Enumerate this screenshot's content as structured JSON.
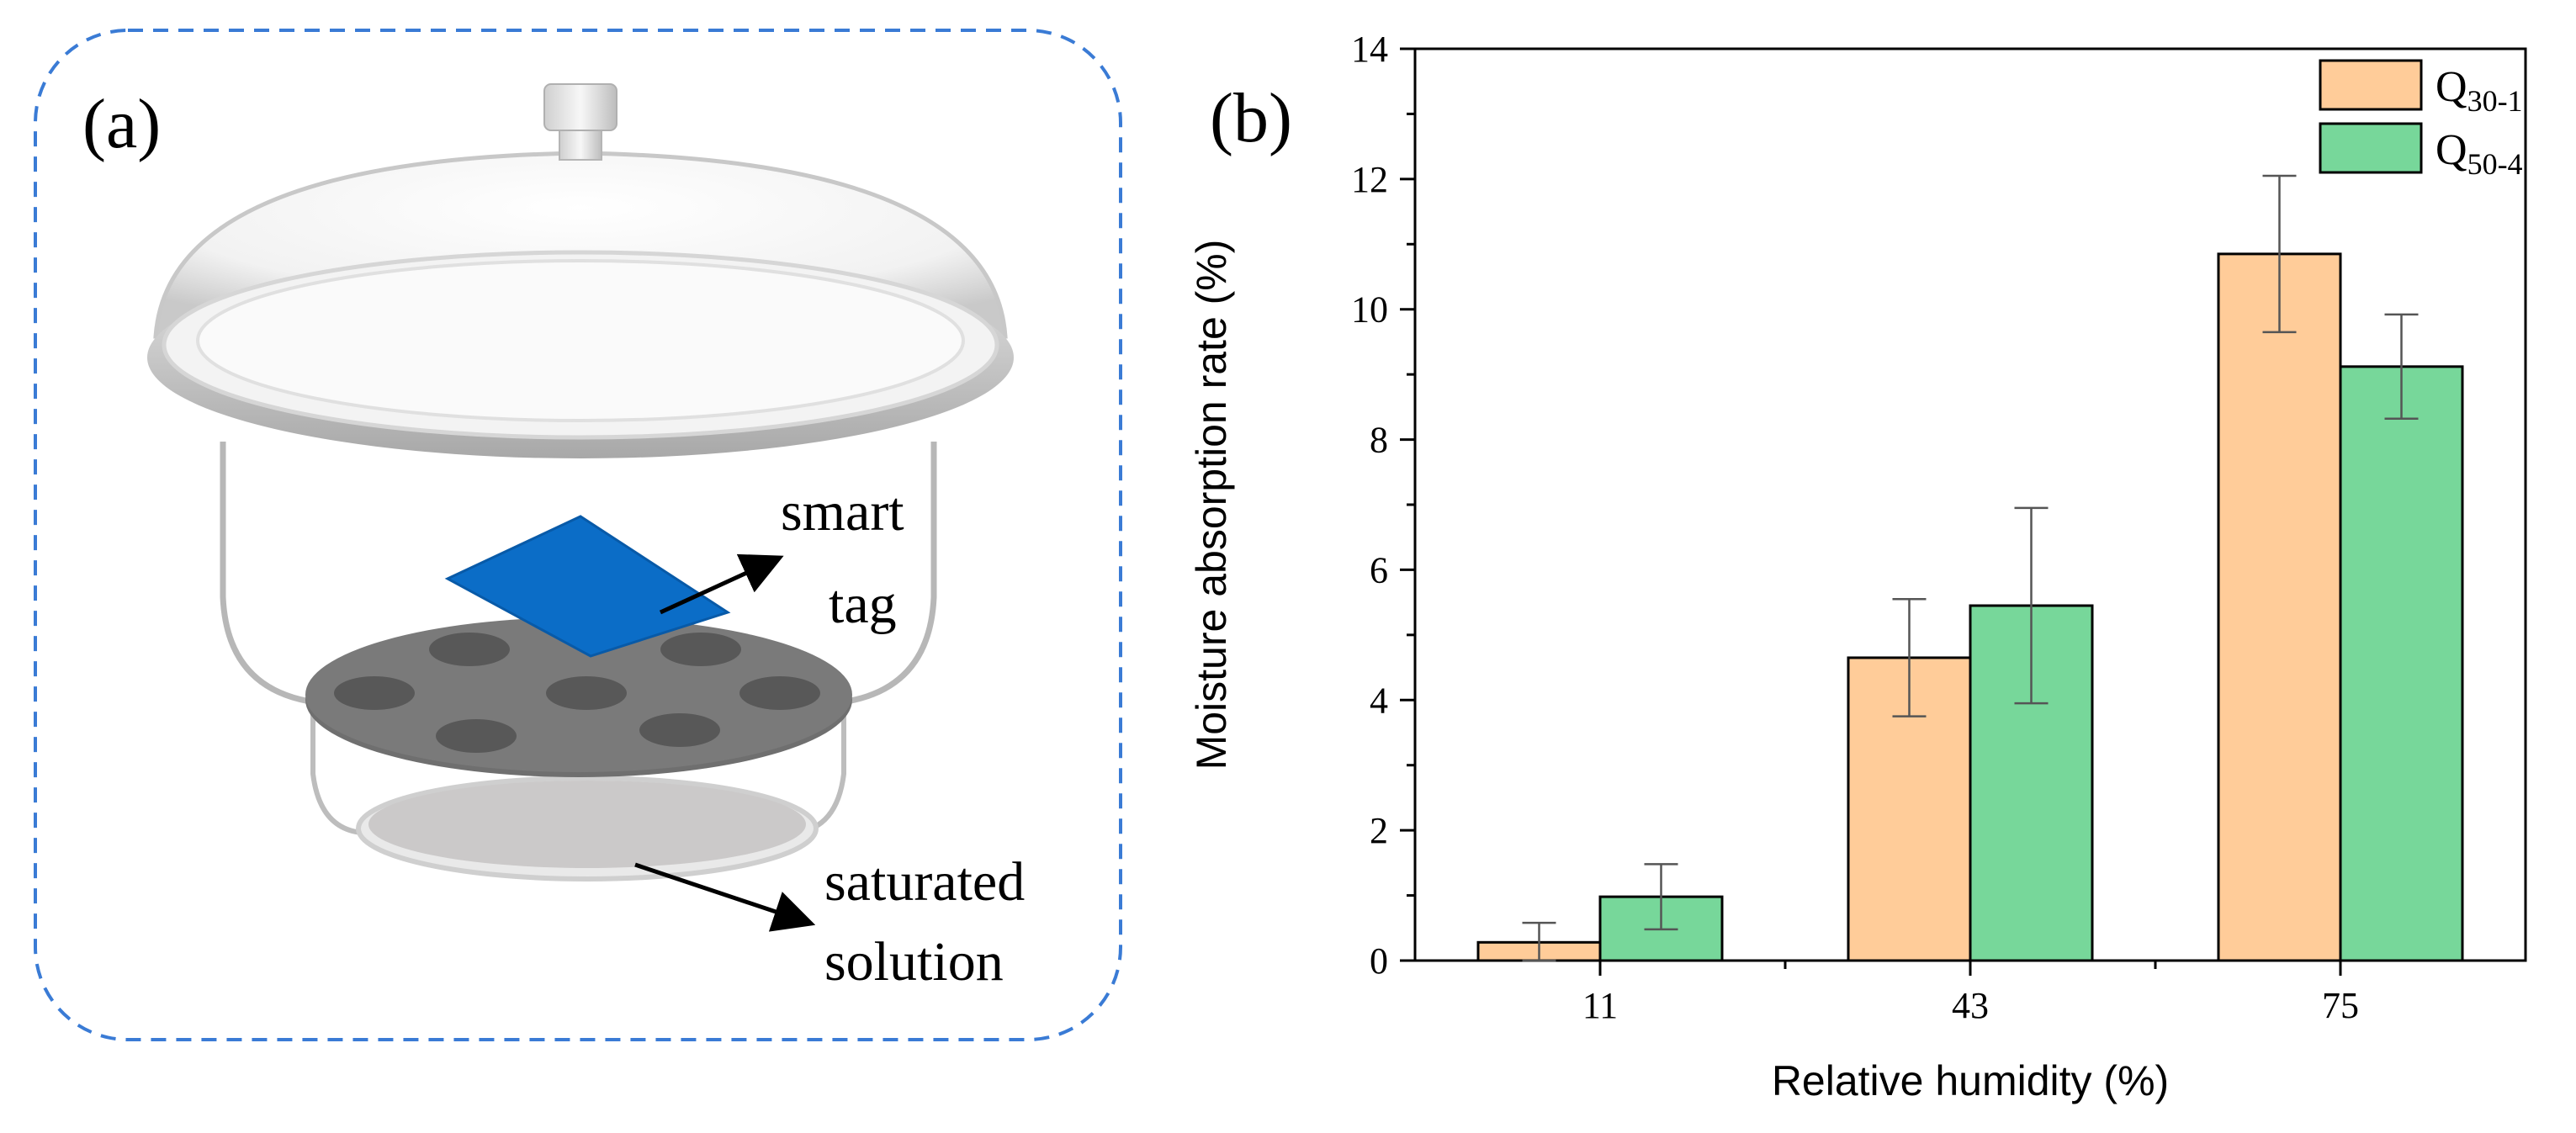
{
  "panel_a": {
    "label": "(a)",
    "callout_tag": [
      "smart",
      "tag"
    ],
    "callout_solution": [
      "saturated",
      "solution"
    ]
  },
  "panel_b": {
    "label": "(b)"
  },
  "chart_data": {
    "type": "bar",
    "title": "",
    "xlabel": "Relative humidity (%)",
    "ylabel": "Moisture absorption rate (%)",
    "categories": [
      "11",
      "43",
      "75"
    ],
    "ylim": [
      0,
      14
    ],
    "yticks": [
      0,
      2,
      4,
      6,
      8,
      10,
      12,
      14
    ],
    "series": [
      {
        "name": "Q",
        "sub": "30-1",
        "color": "#FFCC99",
        "values": [
          0.28,
          4.65,
          10.85
        ],
        "errors": [
          0.3,
          0.9,
          1.2
        ]
      },
      {
        "name": "Q",
        "sub": "50-4",
        "color": "#77D79A",
        "values": [
          0.98,
          5.45,
          9.12
        ],
        "errors": [
          0.5,
          1.5,
          0.8
        ]
      }
    ],
    "legend_position": "top-right"
  }
}
